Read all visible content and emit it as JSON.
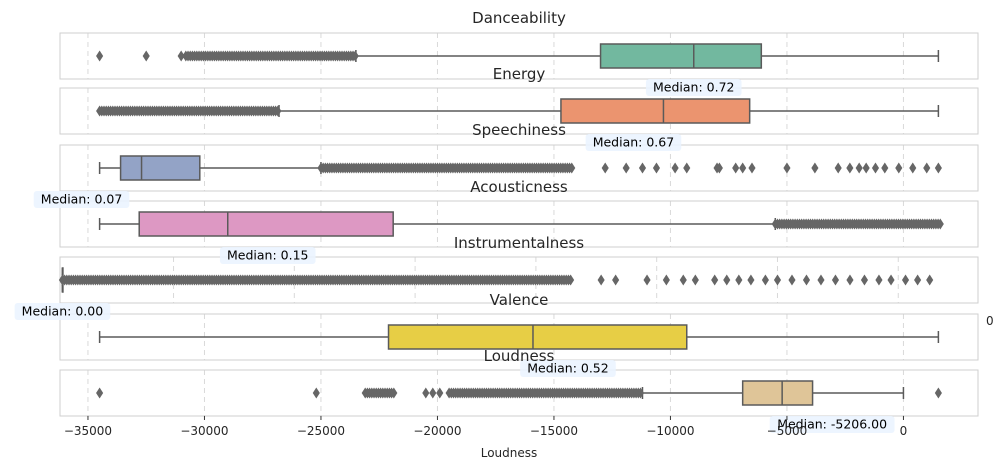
{
  "chart_data": {
    "type": "box",
    "xlabel": "Loudness",
    "xlim": [
      -36200,
      3200
    ],
    "xticks": [
      -35000,
      -30000,
      -25000,
      -20000,
      -15000,
      -10000,
      -5000,
      0
    ],
    "xtick_labels": [
      "−35000",
      "−30000",
      "−25000",
      "−20000",
      "−15000",
      "−10000",
      "−5000",
      "0"
    ],
    "grid": true,
    "stray_tick_label": "0",
    "panels": [
      {
        "title": "Danceability",
        "color": "#72b89f",
        "xlim": [
          -36200,
          3200
        ],
        "whisker_low": -23500,
        "q1": -13000,
        "median": -9000,
        "q3": -6100,
        "whisker_high": 1500,
        "outliers": [
          -34500,
          -32500,
          -31000
        ],
        "outlier_bands": [
          [
            -30800,
            -23500
          ]
        ],
        "median_label": "Median: 0.72"
      },
      {
        "title": "Energy",
        "color": "#eb946f",
        "xlim": [
          -36200,
          3200
        ],
        "whisker_low": -26800,
        "q1": -14700,
        "median": -10300,
        "q3": -6600,
        "whisker_high": 1500,
        "outliers": [],
        "outlier_bands": [
          [
            -34500,
            -26800
          ]
        ],
        "median_label": "Median: 0.67"
      },
      {
        "title": "Speechiness",
        "color": "#93a3c6",
        "xlim": [
          -36200,
          3200
        ],
        "whisker_low": -34500,
        "q1": -33600,
        "median": -32700,
        "q3": -30200,
        "whisker_high": -25000,
        "outliers": [
          -12800,
          -11900,
          -11200,
          -10600,
          -9800,
          -9300,
          -8000,
          -7900,
          -7200,
          -6900,
          -6500,
          -5000,
          -3800,
          -2800,
          -2300,
          -1900,
          -1600,
          -1200,
          -800,
          -200,
          400,
          1000,
          1500
        ],
        "outlier_bands": [
          [
            -25000,
            -14200
          ]
        ],
        "median_label": "Median: 0.07"
      },
      {
        "title": "Acousticness",
        "color": "#dd98c3",
        "xlim": [
          -36200,
          3200
        ],
        "whisker_low": -34500,
        "q1": -32800,
        "median": -29000,
        "q3": -21900,
        "whisker_high": -5500,
        "outliers": [],
        "outlier_bands": [
          [
            -5500,
            1600
          ]
        ],
        "median_label": "Median: 0.15"
      },
      {
        "title": "Instrumentalness",
        "color": "#a5d566",
        "xlim": [
          -34700,
          3300
        ],
        "whisker_low": -34600,
        "q1": -34600,
        "median": -34600,
        "q3": -34600,
        "whisker_high": -34600,
        "outliers": [
          -12300,
          -11700,
          -10400,
          -9600,
          -8900,
          -8400,
          -7600,
          -7100,
          -6600,
          -6100,
          -5500,
          -5000,
          -4400,
          -3800,
          -3200,
          -2600,
          -2000,
          -1400,
          -800,
          -300,
          300,
          800,
          1300
        ],
        "outlier_bands": [
          [
            -34600,
            -13500
          ]
        ],
        "median_label": "Median: 0.00"
      },
      {
        "title": "Valence",
        "color": "#e7ce45",
        "xlim": [
          -36200,
          3200
        ],
        "whisker_low": -34500,
        "q1": -22100,
        "median": -15900,
        "q3": -9300,
        "whisker_high": 1500,
        "outliers": [],
        "outlier_bands": [],
        "median_label": "Median: 0.52"
      },
      {
        "title": "Loudness",
        "color": "#dfc598",
        "xlim": [
          -36200,
          3200
        ],
        "whisker_low": -11200,
        "q1": -6900,
        "median": -5206,
        "q3": -3900,
        "whisker_high": 0,
        "outliers": [
          -34500,
          -25200,
          -20500,
          -20200,
          -19900,
          1500
        ],
        "outlier_bands": [
          [
            -23100,
            -21800
          ],
          [
            -19500,
            -11200
          ]
        ],
        "median_label": "Median: -5206.00"
      }
    ]
  }
}
